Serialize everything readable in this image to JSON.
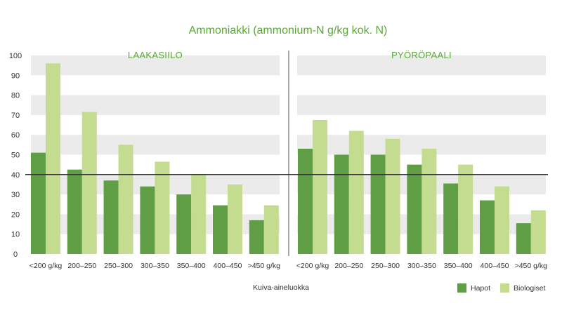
{
  "chart_data": {
    "type": "bar",
    "title": "Ammoniakki (ammonium-N g/kg kok. N)",
    "xlabel": "Kuiva-aineluokka",
    "ylabel": "",
    "ylim": [
      0,
      100
    ],
    "yticks": [
      0,
      10,
      20,
      30,
      40,
      50,
      60,
      70,
      80,
      90,
      100
    ],
    "reference_line": 40,
    "categories": [
      "<200 g/kg",
      "200–250",
      "250–300",
      "300–350",
      "350–400",
      "400–450",
      ">450 g/kg"
    ],
    "panels": [
      {
        "title": "LAAKASIILO",
        "series": [
          {
            "name": "Hapot",
            "values": [
              51,
              42.5,
              37,
              34,
              30,
              24.5,
              17
            ]
          },
          {
            "name": "Biologiset",
            "values": [
              96,
              71.5,
              55,
              46.5,
              40,
              35,
              24.5
            ]
          }
        ]
      },
      {
        "title": "PYÖRÖPAALI",
        "series": [
          {
            "name": "Hapot",
            "values": [
              53,
              50,
              50,
              45,
              35.5,
              27,
              15.5
            ]
          },
          {
            "name": "Biologiset",
            "values": [
              67.5,
              62,
              58,
              53,
              45,
              34,
              22
            ]
          }
        ]
      }
    ],
    "legend": [
      {
        "name": "Hapot",
        "color": "#5f9e44"
      },
      {
        "name": "Biologiset",
        "color": "#c3dc8f"
      }
    ],
    "legend_position": "bottom-right",
    "grid": "alternating horizontal bands"
  },
  "colors": {
    "title": "#5aa833",
    "hapot": "#5f9e44",
    "biologiset": "#c3dc8f",
    "band": "#ebebeb",
    "reference": "#333333",
    "divider": "#555555"
  }
}
